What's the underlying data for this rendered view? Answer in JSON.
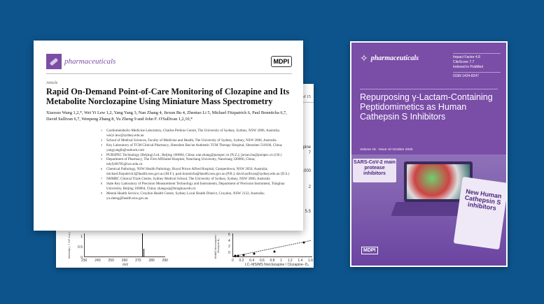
{
  "back_page": {
    "page_number": "5 of 15",
    "fragments": [
      "pine",
      "7",
      "1000",
      "2",
      "5.5"
    ],
    "chart1": {
      "ylabel": "Intensity (×10⁵ a.u.)",
      "yticks": [
        "1",
        "0.5",
        "0"
      ],
      "xticks": [
        "230",
        "240",
        "250",
        "260",
        "270",
        "280",
        "290"
      ],
      "xlabel": "m/z"
    },
    "chart2": {
      "ylabel": "MiniMS Norclozapine / Clozapine-D₄",
      "yticks": [
        "6",
        "4",
        "2",
        "0"
      ],
      "xticks": [
        "0",
        "0.2",
        "0.4",
        "0.6",
        "0.8",
        "1",
        "1.2",
        "1.4",
        "1.6"
      ],
      "xlabel": "LC−MS/MS Norclozapine / Clozapine−D₄"
    }
  },
  "front_page": {
    "journal": "pharmaceuticals",
    "publisher": "MDPI",
    "type": "Article",
    "title": "Rapid On-Demand Point-of-Care Monitoring of Clozapine and Its Metabolite Norclozapine Using Miniature Mass Spectrometry",
    "authors": "Xiaosuo Wang 1,2,*, Wei Yi Lew 1,2, Yang Yang 3, Nan Zhang 4, Jiexun Bu 4, Zhentao Li 5, Michael Fitzpatrick 6, Paul Bonnitcha 6,7, David Sullivan 6,7, Wenpeng Zhang 8, Yu Zheng 9 and John F. O'Sullivan 1,2,10,*",
    "affiliations": [
      {
        "n": "1",
        "text": "Cardiometabolic-Medicine Laboratory, Charles Perkins Centre, The University of Sydney, Sydney, NSW 2006, Australia; weiyi.lew@sydney.edu.au"
      },
      {
        "n": "2",
        "text": "School of Medical Sciences, Faculty of Medicine and Health, The University of Sydney, Sydney, NSW 2006, Australia"
      },
      {
        "n": "3",
        "text": "Key Laboratory of TCM Clinical Pharmacy, Shenzhen Bao'an Authentic TCM Therapy Hospital, Shenzhen 518100, China; yangyanglb@outlook.com"
      },
      {
        "n": "4",
        "text": "PURSPEC Technology (Beijing) Ltd., Beijing 100084, China; nan.zhang@purspec.cn (N.Z.); jiexun.bu@purspec.cn (J.B.)"
      },
      {
        "n": "5",
        "text": "Department of Pharmacy, The First Affiliated Hospital, Nanchang University, Nanchang 330006, China; ndyfy00785@ncu.edu.cn"
      },
      {
        "n": "6",
        "text": "Chemical Pathology, NSW Health Pathology, Royal Prince Alfred Hospital, Camperdown, NSW 2050, Australia; michael.fitzpatrick3@health.nsw.gov.au (M.F.); paul.bonnitcha@health.nsw.gov.au (P.B.); david.sullivan@sydney.edu.au (D.S.)"
      },
      {
        "n": "7",
        "text": "NHMRC Clinical Trials Centre, Sydney Medical School, The University of Sydney, Sydney, NSW 2006, Australia"
      },
      {
        "n": "8",
        "text": "State Key Laboratory of Precision Measurement Technology and Instruments, Department of Precision Instrument, Tsinghua University, Beijing 100084, China; zhangwp@tsinghua.edu.cn"
      },
      {
        "n": "9",
        "text": "Mental Health Service, Croydon Health Centre, Sydney Local Health District, Croydon, NSW 2132, Australia; yu.zheng@health.nsw.gov.au"
      }
    ]
  },
  "cover": {
    "journal": "pharmaceuticals",
    "impact": "Impact Factor 4.8",
    "citescore": "CiteScore 7.7",
    "indexed": "Indexed in PubMed",
    "issn": "ISSN 1424-8247",
    "title": "Repurposing γ-Lactam-Containing Peptidomimetics as Human Cathepsin S Inhibitors",
    "volume": "Volume 18 · Issue 10 October 2025",
    "sars_label": "SARS-CoV-2 main protease inhibitors",
    "pad_label": "New Human Cathepsin S inhibitors",
    "publisher": "MDPI",
    "color": "#7a4da7"
  },
  "colors": {
    "background": "#0d548c",
    "journal_purple": "#7b4ea3"
  }
}
